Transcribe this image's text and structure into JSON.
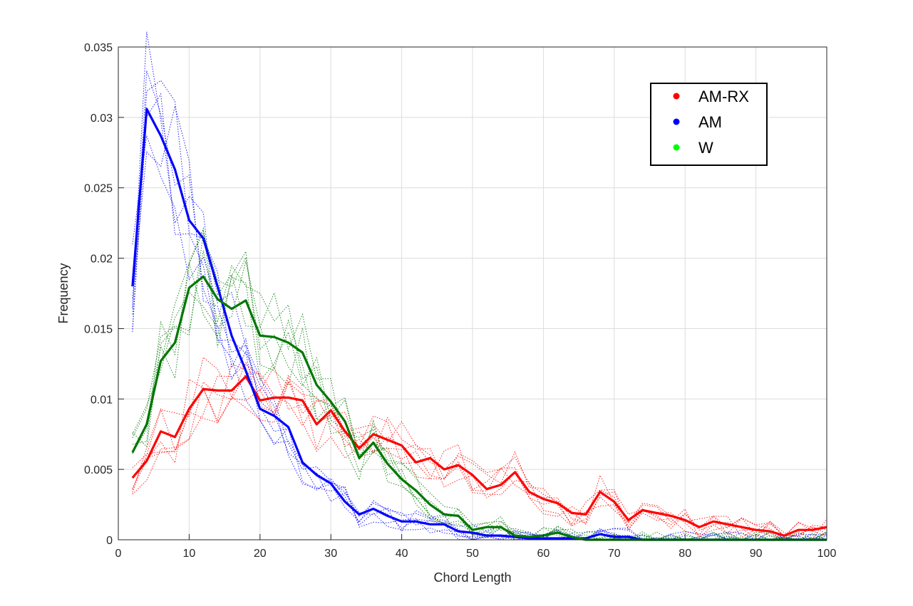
{
  "chart_data": {
    "type": "line",
    "xlabel": "Chord Length",
    "ylabel": "Frequency",
    "xlim": [
      0,
      100
    ],
    "ylim": [
      0,
      0.035
    ],
    "x_ticks": [
      "0",
      "10",
      "20",
      "30",
      "40",
      "50",
      "60",
      "70",
      "80",
      "90",
      "100"
    ],
    "y_ticks": [
      "0",
      "0.005",
      "0.01",
      "0.015",
      "0.02",
      "0.025",
      "0.03",
      "0.035"
    ],
    "grid": true,
    "legend_position": "top-right",
    "series": [
      {
        "name": "AM-RX",
        "color": "#ff0000",
        "x": [
          2,
          4,
          6,
          8,
          10,
          12,
          14,
          16,
          18,
          20,
          22,
          24,
          26,
          28,
          30,
          32,
          34,
          36,
          38,
          40,
          42,
          44,
          46,
          48,
          50,
          52,
          54,
          56,
          58,
          60,
          62,
          64,
          66,
          68,
          70,
          72,
          74,
          76,
          78,
          80,
          82,
          84,
          86,
          88,
          90,
          92,
          94,
          96,
          98,
          100
        ],
        "y": [
          0.0044,
          0.0056,
          0.0077,
          0.0073,
          0.0093,
          0.0107,
          0.0106,
          0.0106,
          0.0116,
          0.0099,
          0.0101,
          0.0101,
          0.0099,
          0.0082,
          0.0092,
          0.0077,
          0.0065,
          0.0075,
          0.0071,
          0.0067,
          0.0055,
          0.0058,
          0.005,
          0.0053,
          0.0046,
          0.0036,
          0.0039,
          0.0048,
          0.0034,
          0.0029,
          0.0026,
          0.0019,
          0.0018,
          0.0034,
          0.0027,
          0.0014,
          0.0021,
          0.0019,
          0.0017,
          0.0014,
          0.0009,
          0.0013,
          0.0011,
          0.0009,
          0.0007,
          0.0006,
          0.0003,
          0.0007,
          0.0007,
          0.0009
        ]
      },
      {
        "name": "AM",
        "color": "#0000ff",
        "x": [
          2,
          4,
          6,
          8,
          10,
          12,
          14,
          16,
          18,
          20,
          22,
          24,
          26,
          28,
          30,
          32,
          34,
          36,
          38,
          40,
          42,
          44,
          46,
          48,
          50,
          52,
          54,
          56,
          58,
          60,
          62,
          64,
          66,
          68,
          70,
          72,
          74,
          76,
          78,
          80,
          82,
          84,
          86,
          88,
          90,
          92,
          94,
          96,
          98,
          100
        ],
        "y": [
          0.018,
          0.0306,
          0.0287,
          0.0263,
          0.0227,
          0.0214,
          0.018,
          0.0145,
          0.012,
          0.0093,
          0.0088,
          0.008,
          0.0055,
          0.0046,
          0.004,
          0.0027,
          0.0018,
          0.0022,
          0.0017,
          0.0013,
          0.0013,
          0.0011,
          0.0011,
          0.0006,
          0.0005,
          0.0003,
          0.0003,
          0.0002,
          0.0001,
          0.0001,
          0.0001,
          0.0001,
          0.0001,
          0.0004,
          0.0002,
          0.0002,
          0,
          0,
          0,
          0,
          0,
          0,
          0,
          0,
          0,
          0,
          0,
          0,
          0,
          0
        ]
      },
      {
        "name": "W",
        "color": "#00ff00",
        "x": [
          2,
          4,
          6,
          8,
          10,
          12,
          14,
          16,
          18,
          20,
          22,
          24,
          26,
          28,
          30,
          32,
          34,
          36,
          38,
          40,
          42,
          44,
          46,
          48,
          50,
          52,
          54,
          56,
          58,
          60,
          62,
          64,
          66,
          68,
          70,
          72,
          74,
          76,
          78,
          80,
          82,
          84,
          86,
          88,
          90,
          92,
          94,
          96,
          98,
          100
        ],
        "y": [
          0.0062,
          0.0082,
          0.0127,
          0.014,
          0.0179,
          0.0187,
          0.0171,
          0.0164,
          0.017,
          0.0145,
          0.0144,
          0.014,
          0.0133,
          0.011,
          0.0098,
          0.0084,
          0.0058,
          0.0069,
          0.0054,
          0.0043,
          0.0035,
          0.0025,
          0.0018,
          0.0017,
          0.0007,
          0.0009,
          0.0009,
          0.0003,
          0.0002,
          0.0003,
          0.0005,
          0.0002,
          0,
          0,
          0,
          0,
          0,
          0,
          0,
          0,
          0,
          0,
          0,
          0,
          0,
          0,
          0,
          0,
          0,
          0
        ]
      }
    ],
    "legend": [
      {
        "label": "AM-RX",
        "color": "#ff0000"
      },
      {
        "label": "AM",
        "color": "#0000ff"
      },
      {
        "label": "W",
        "color": "#00ff00"
      }
    ]
  }
}
